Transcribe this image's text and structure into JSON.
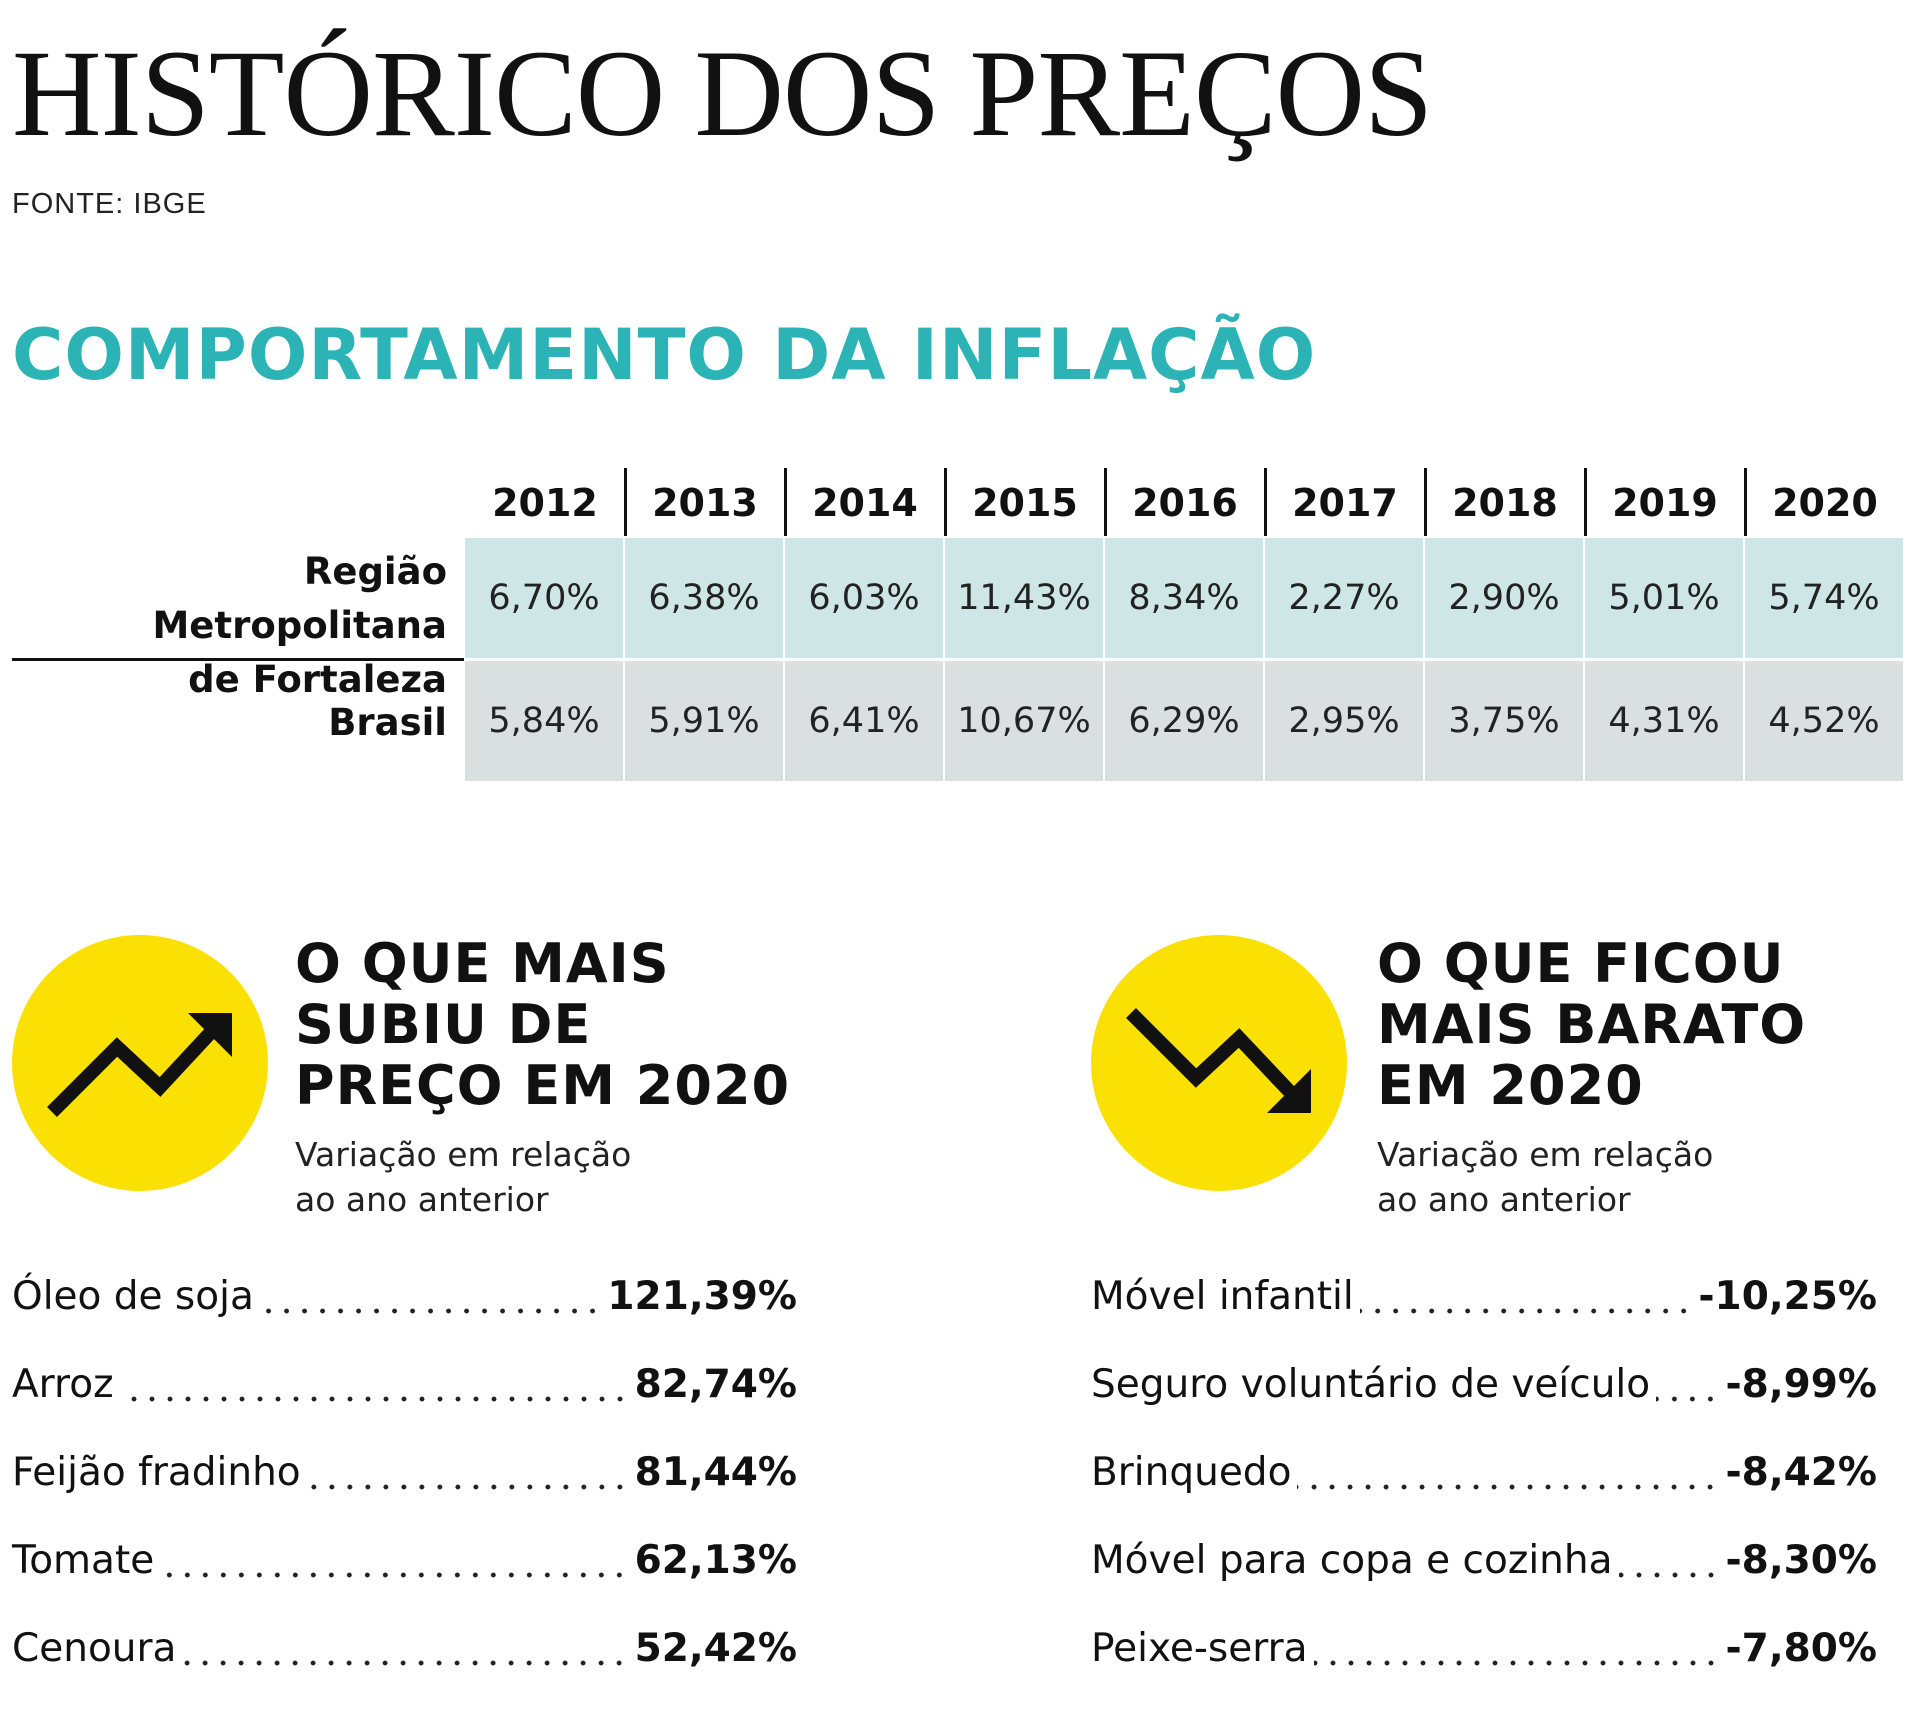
{
  "header": {
    "title": "HISTÓRICO DOS PREÇOS",
    "source": "FONTE: IBGE"
  },
  "colors": {
    "accent": "#2bb3b5",
    "row1_bg": "#cfe6e6",
    "row2_bg": "#dadfe0",
    "circle": "#fae103"
  },
  "chart_data": [
    {
      "type": "table",
      "title": "COMPORTAMENTO DA INFLAÇÃO",
      "columns": [
        "2012",
        "2013",
        "2014",
        "2015",
        "2016",
        "2017",
        "2018",
        "2019",
        "2020"
      ],
      "rows": [
        {
          "label": "Região Metropolitana\nde Fortaleza",
          "cells": [
            "6,70%",
            "6,38%",
            "6,03%",
            "11,43%",
            "8,34%",
            "2,27%",
            "2,90%",
            "5,01%",
            "5,74%"
          ],
          "values": [
            6.7,
            6.38,
            6.03,
            11.43,
            8.34,
            2.27,
            2.9,
            5.01,
            5.74
          ]
        },
        {
          "label": "Brasil",
          "cells": [
            "5,84%",
            "5,91%",
            "6,41%",
            "10,67%",
            "6,29%",
            "2,95%",
            "3,75%",
            "4,31%",
            "4,52%"
          ],
          "values": [
            5.84,
            5.91,
            6.41,
            10.67,
            6.29,
            2.95,
            3.75,
            4.31,
            4.52
          ]
        }
      ]
    },
    {
      "type": "table",
      "title": "O QUE MAIS\nSUBIU DE\nPREÇO EM 2020",
      "subtitle": "Variação em relação\nao ano anterior",
      "icon": "trend-up-icon",
      "items": [
        {
          "name": "Óleo de soja",
          "value_text": "121,39%",
          "value": 121.39
        },
        {
          "name": "Arroz",
          "value_text": "82,74%",
          "value": 82.74
        },
        {
          "name": "Feijão fradinho",
          "value_text": "81,44%",
          "value": 81.44
        },
        {
          "name": "Tomate",
          "value_text": "62,13%",
          "value": 62.13
        },
        {
          "name": "Cenoura",
          "value_text": "52,42%",
          "value": 52.42
        }
      ]
    },
    {
      "type": "table",
      "title": "O QUE FICOU\nMAIS BARATO\nEM 2020",
      "subtitle": "Variação em relação\nao ano anterior",
      "icon": "trend-down-icon",
      "items": [
        {
          "name": "Móvel infantil",
          "value_text": "-10,25%",
          "value": -10.25
        },
        {
          "name": "Seguro voluntário de veículo",
          "value_text": "-8,99%",
          "value": -8.99
        },
        {
          "name": "Brinquedo",
          "value_text": "-8,42%",
          "value": -8.42
        },
        {
          "name": "Móvel para copa e cozinha",
          "value_text": "-8,30%",
          "value": -8.3
        },
        {
          "name": "Peixe-serra",
          "value_text": "-7,80%",
          "value": -7.8
        }
      ]
    }
  ]
}
